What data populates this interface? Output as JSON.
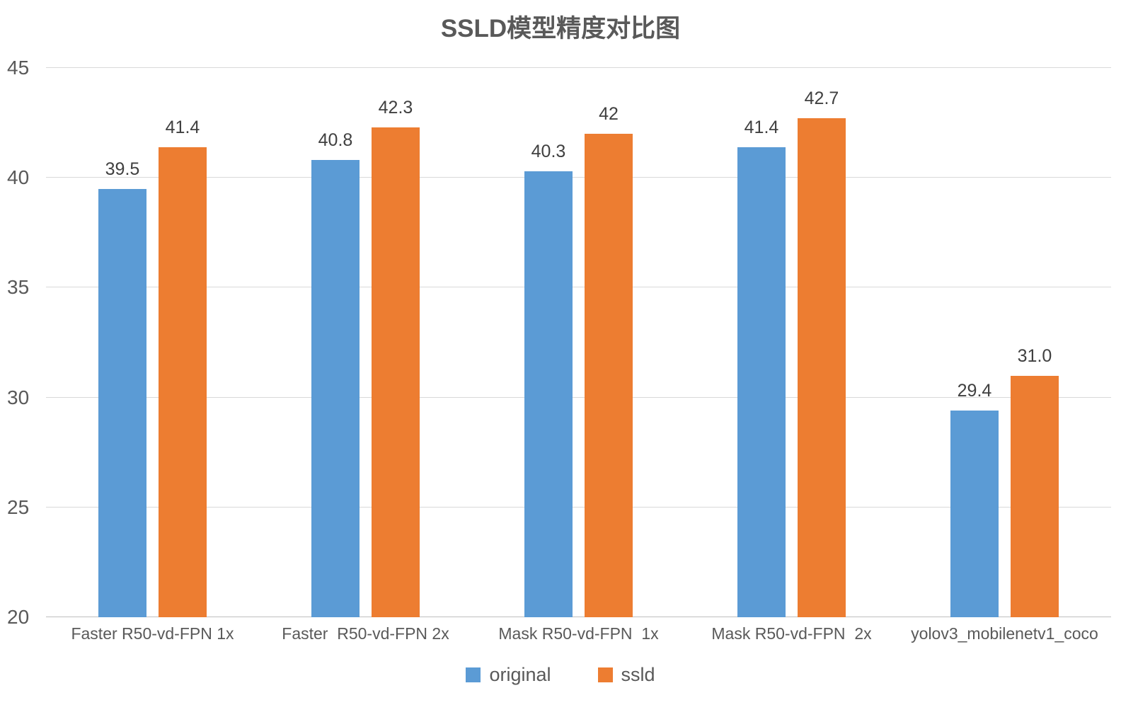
{
  "title": "SSLD模型精度对比图",
  "chart_data": {
    "type": "bar",
    "title": "SSLD模型精度对比图",
    "categories": [
      "Faster R50-vd-FPN 1x",
      "Faster  R50-vd-FPN 2x",
      "Mask R50-vd-FPN  1x",
      "Mask R50-vd-FPN  2x",
      "yolov3_mobilenetv1_coco"
    ],
    "series": [
      {
        "name": "original",
        "color": "#5B9BD5",
        "values": [
          39.5,
          40.8,
          40.3,
          41.4,
          29.4
        ],
        "labels": [
          "39.5",
          "40.8",
          "40.3",
          "41.4",
          "29.4"
        ]
      },
      {
        "name": "ssld",
        "color": "#ED7D31",
        "values": [
          41.4,
          42.3,
          42.0,
          42.7,
          31.0
        ],
        "labels": [
          "41.4",
          "42.3",
          "42",
          "42.7",
          "31.0"
        ]
      }
    ],
    "xlabel": "",
    "ylabel": "",
    "ylim": [
      20,
      45
    ],
    "yticks": [
      20,
      25,
      30,
      35,
      40,
      45
    ],
    "grid": true,
    "legend_position": "bottom"
  },
  "colors": {
    "grid": "#D9D9D9",
    "axis_line": "#BFBFBF",
    "axis_text": "#595959",
    "data_label_text": "#404040",
    "title_text": "#595959"
  }
}
